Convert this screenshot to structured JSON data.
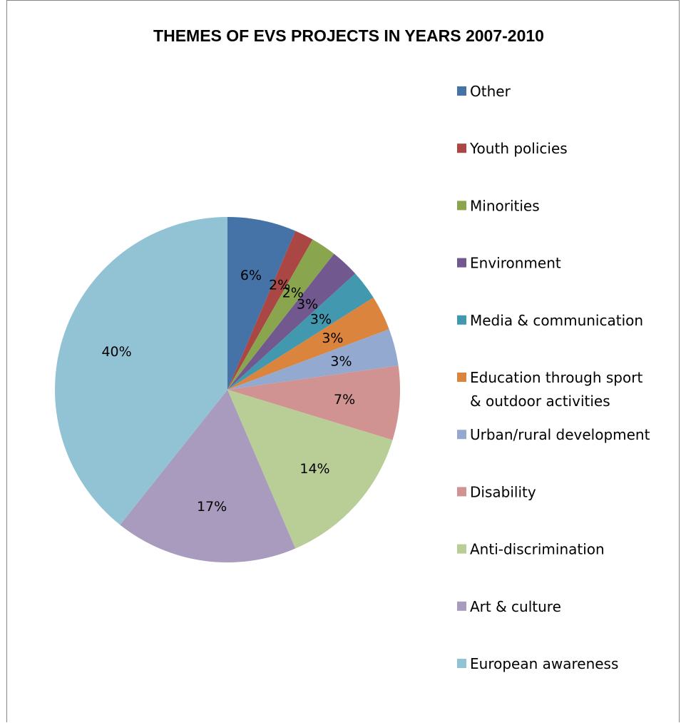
{
  "chart_data": {
    "type": "pie",
    "title": "THEMES OF EVS PROJECTS IN YEARS 2007-2010",
    "legend_position": "right",
    "start_angle_deg": 0,
    "direction": "clockwise",
    "slices": [
      {
        "label": "Other",
        "label_lines": [
          "Other"
        ],
        "value": 6.5,
        "display": "6%",
        "color": "#4572A7"
      },
      {
        "label": "Youth policies",
        "label_lines": [
          "Youth policies"
        ],
        "value": 1.8,
        "display": "2%",
        "color": "#AA4643"
      },
      {
        "label": "Minorities",
        "label_lines": [
          "Minorities"
        ],
        "value": 2.4,
        "display": "2%",
        "color": "#89A54E"
      },
      {
        "label": "Environment",
        "label_lines": [
          "Environment"
        ],
        "value": 2.7,
        "display": "3%",
        "color": "#71588F"
      },
      {
        "label": "Media & communication",
        "label_lines": [
          "Media & communication"
        ],
        "value": 2.8,
        "display": "3%",
        "color": "#4198AF"
      },
      {
        "label": "Education through sport & outdoor activities",
        "label_lines": [
          "Education through sport",
          "& outdoor activities"
        ],
        "value": 3.3,
        "display": "3%",
        "color": "#DB843D"
      },
      {
        "label": "Urban/rural development",
        "label_lines": [
          "Urban/rural development"
        ],
        "value": 3.5,
        "display": "3%",
        "color": "#93A9CF"
      },
      {
        "label": "Disability",
        "label_lines": [
          "Disability"
        ],
        "value": 7.0,
        "display": "7%",
        "color": "#D19392"
      },
      {
        "label": "Anti-discrimination",
        "label_lines": [
          "Anti-discrimination"
        ],
        "value": 14.0,
        "display": "14%",
        "color": "#B9CD96"
      },
      {
        "label": "Art & culture",
        "label_lines": [
          "Art & culture"
        ],
        "value": 17.3,
        "display": "17%",
        "color": "#A99BBD"
      },
      {
        "label": "European awareness",
        "label_lines": [
          "European awareness"
        ],
        "value": 39.7,
        "display": "40%",
        "color": "#92C3D4"
      }
    ]
  }
}
